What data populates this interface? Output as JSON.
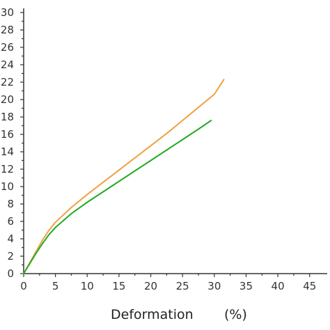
{
  "chart_data": {
    "type": "line",
    "title": "",
    "xlabel": "Deformation",
    "xunit": "(%)",
    "ylabel": "",
    "xlim": [
      0,
      47
    ],
    "ylim": [
      0,
      30
    ],
    "xticks": [
      0,
      5,
      10,
      15,
      20,
      25,
      30,
      35,
      40,
      45
    ],
    "yticks": [
      0,
      2,
      4,
      6,
      8,
      10,
      12,
      14,
      16,
      18,
      20,
      22,
      24,
      26,
      28,
      30
    ],
    "grid": false,
    "legend": "none",
    "series": [
      {
        "color": "#f0a040",
        "x": [
          0,
          1,
          2,
          3,
          4,
          5,
          7.5,
          10,
          12.5,
          15,
          17.5,
          20,
          22.5,
          25,
          27.5,
          30,
          31.5
        ],
        "y": [
          0,
          1.3,
          2.6,
          3.9,
          5.0,
          5.9,
          7.6,
          9.1,
          10.5,
          11.9,
          13.3,
          14.7,
          16.1,
          17.6,
          19.1,
          20.6,
          22.3
        ]
      },
      {
        "color": "#22aa22",
        "x": [
          0,
          1,
          2,
          3,
          4,
          5,
          7.5,
          10,
          12.5,
          15,
          17.5,
          20,
          22.5,
          25,
          27.5,
          29.5
        ],
        "y": [
          0,
          1.2,
          2.4,
          3.5,
          4.5,
          5.3,
          6.9,
          8.2,
          9.4,
          10.6,
          11.8,
          13.0,
          14.2,
          15.4,
          16.6,
          17.6
        ]
      }
    ]
  }
}
